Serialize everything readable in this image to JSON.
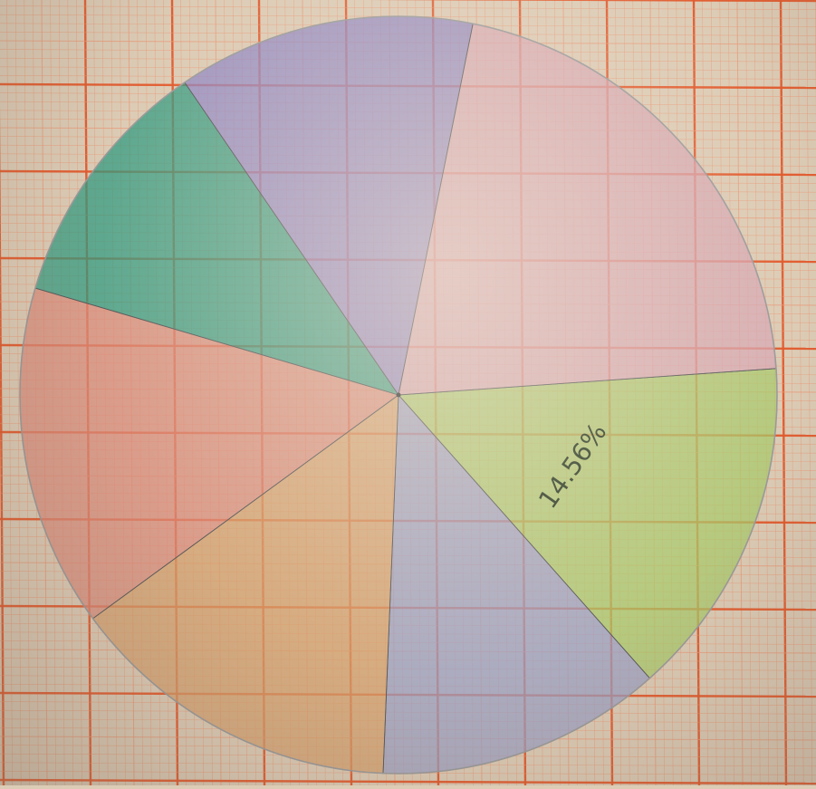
{
  "chart_data": {
    "type": "pie",
    "title": "",
    "slices": [
      {
        "value": 14.56,
        "label": "14.56%",
        "color": "#a7c96a"
      },
      {
        "value": 12.2,
        "label": "",
        "color": "#9aa0c4"
      },
      {
        "value": 14.3,
        "label": "",
        "color": "#d4a06c"
      },
      {
        "value": 14.6,
        "label": "",
        "color": "#d98a7a"
      },
      {
        "value": 10.9,
        "label": "",
        "color": "#2e9a7f"
      },
      {
        "value": 12.7,
        "label": "",
        "color": "#8c84c4"
      },
      {
        "value": 20.74,
        "label": "",
        "color": "#d7a6b3"
      }
    ]
  },
  "colors": {
    "paper": "#dcccb6",
    "grid_major": "#e35a2c",
    "grid_minor": "#ea9a78",
    "circle_outline": "#9a9a9a",
    "label_ink": "#2b3a24"
  }
}
